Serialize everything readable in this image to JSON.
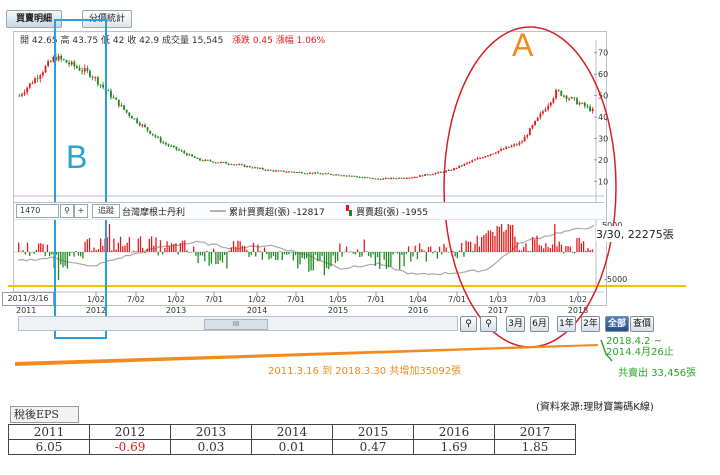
{
  "tabs": [
    {
      "label": "買賣明細",
      "active": true
    },
    {
      "label": "分價統計",
      "active": false
    }
  ],
  "quote": {
    "open": "開 42.65",
    "high": "高 43.75",
    "low": "低 42",
    "close": "收 42.9",
    "volume": "成交量 15,545",
    "change": "漲跌 0.45",
    "pct": "漲幅 1.06%"
  },
  "price_axis": [
    "70",
    "60",
    "50",
    "40",
    "30",
    "20",
    "10"
  ],
  "indicator": {
    "period": "1470",
    "zoom_out": "🔍",
    "plus": "+",
    "track_button": "追蹤",
    "broker": "台灣摩根士丹利",
    "legend_cum": "累計買賣超(張) -12817",
    "legend_daily": "買賣超(張) -1955",
    "axis_top": "5000",
    "axis_bottom": "-5000",
    "callout": "3/30, 22275張"
  },
  "cursor_date": "2011/3/16",
  "x_ticks": [
    {
      "top": "1",
      "year": "2011"
    },
    {
      "top": "1/02",
      "year": "2012"
    },
    {
      "top": "7/02",
      "year": ""
    },
    {
      "top": "1/02",
      "year": "2013"
    },
    {
      "top": "7/01",
      "year": ""
    },
    {
      "top": "1/02",
      "year": "2014"
    },
    {
      "top": "7/01",
      "year": ""
    },
    {
      "top": "1/05",
      "year": "2015"
    },
    {
      "top": "7/01",
      "year": ""
    },
    {
      "top": "1/04",
      "year": "2016"
    },
    {
      "top": "7/01",
      "year": ""
    },
    {
      "top": "1/03",
      "year": "2017"
    },
    {
      "top": "7/03",
      "year": ""
    },
    {
      "top": "1/02",
      "year": "2018"
    }
  ],
  "period_buttons": [
    "3月",
    "6月",
    "1年",
    "2年",
    "全部",
    "查價"
  ],
  "scroll_thumb": "III",
  "annotations": {
    "A": "A",
    "B": "B",
    "range_note": "2011.3.16 到 2018.3.30 共增加35092張",
    "sell_range": "2018.4.2 ~\n2014.4月26止",
    "sell_total": "共賣出 33,456張",
    "source": "(資料來源:理財寶籌碼K線)"
  },
  "eps": {
    "title": "稅後EPS",
    "years": [
      "2011",
      "2012",
      "2013",
      "2014",
      "2015",
      "2016",
      "2017"
    ],
    "values": [
      "6.05",
      "-0.69",
      "0.03",
      "0.01",
      "0.47",
      "1.69",
      "1.85"
    ]
  },
  "chart_data": {
    "type": "candlestick",
    "x": [
      "2011-03",
      "2011-06",
      "2011-09",
      "2012-01",
      "2012-07",
      "2013-01",
      "2013-07",
      "2014-01",
      "2014-07",
      "2015-01",
      "2015-07",
      "2016-01",
      "2016-07",
      "2017-01",
      "2017-07",
      "2018-01",
      "2018-03"
    ],
    "close": [
      50,
      68,
      60,
      42,
      28,
      20,
      18,
      15,
      14,
      13,
      11,
      12,
      15,
      22,
      28,
      52,
      43
    ],
    "ylim": [
      5,
      75
    ],
    "cumulative_net": [
      0,
      2000,
      -4000,
      3000,
      9000,
      12000,
      8000,
      10000,
      4000,
      -5000,
      -2000,
      -9000,
      -8000,
      -6000,
      12000,
      18000,
      22275
    ]
  },
  "colors": {
    "up": "#e21b1b",
    "down": "#1e8a1e",
    "annotation_red": "#d62020",
    "annotation_blue": "#28a0d8",
    "annotation_orange": "#f28a1f",
    "annotation_green": "#2aa52a"
  }
}
